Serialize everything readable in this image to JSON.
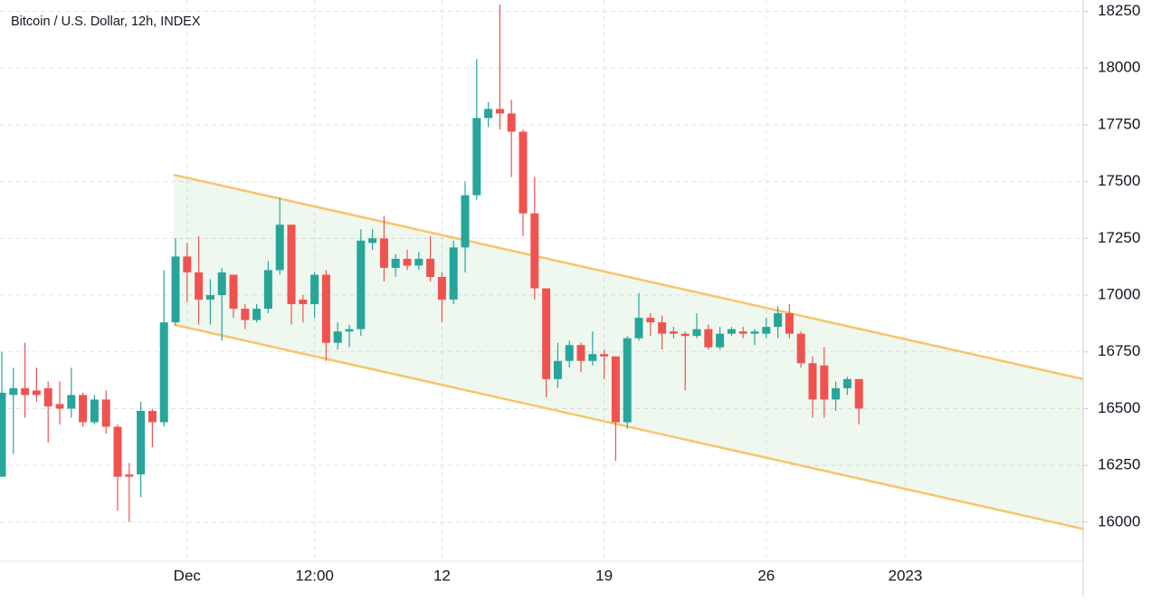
{
  "chart_data": {
    "type": "candlestick",
    "title": "Bitcoin / U.S. Dollar, 12h, INDEX",
    "categories": [
      null,
      null,
      null,
      null,
      null,
      null,
      null,
      null,
      null,
      null,
      null,
      null,
      null,
      null,
      null,
      null,
      "Dec",
      null,
      null,
      null,
      null,
      null,
      null,
      null,
      null,
      null,
      null,
      "12:00",
      null,
      null,
      null,
      null,
      null,
      null,
      null,
      null,
      null,
      null,
      "12",
      null,
      null,
      null,
      null,
      null,
      null,
      null,
      null,
      null,
      null,
      null,
      null,
      null,
      "19",
      null,
      null,
      null,
      null,
      null,
      null,
      null,
      null,
      null,
      null,
      null,
      null,
      null,
      "26",
      null,
      null,
      null,
      null,
      null,
      null,
      null,
      null,
      null,
      null,
      null,
      "2023"
    ],
    "open": [
      16200,
      16560,
      16590,
      16580,
      16590,
      16520,
      16500,
      16560,
      16440,
      16540,
      16420,
      16210,
      16210,
      16490,
      16440,
      16880,
      17170,
      17100,
      16980,
      17000,
      17090,
      16940,
      16890,
      16940,
      17110,
      17310,
      16980,
      16960,
      17090,
      16790,
      16840,
      16850,
      17230,
      17250,
      17120,
      17160,
      17130,
      17160,
      17080,
      16980,
      17210,
      17440,
      17780,
      17820,
      17800,
      17720,
      17360,
      17030,
      16630,
      16710,
      16780,
      16710,
      16740,
      16730,
      16440,
      16810,
      16900,
      16880,
      16840,
      16830,
      16820,
      16850,
      16770,
      16830,
      16840,
      16830,
      16830,
      16860,
      16920,
      16830,
      16700,
      16690,
      16540,
      16590,
      16630,
      null,
      null,
      null,
      null
    ],
    "high": [
      16750,
      16680,
      16790,
      16680,
      16620,
      16620,
      16680,
      16570,
      16560,
      16580,
      16430,
      16260,
      16530,
      16500,
      17110,
      17250,
      17230,
      17260,
      17070,
      17120,
      17090,
      16960,
      16960,
      17150,
      17430,
      17310,
      17000,
      17100,
      17110,
      16880,
      16870,
      17290,
      17290,
      17350,
      17180,
      17200,
      17190,
      17260,
      17100,
      17240,
      17500,
      18040,
      17850,
      18280,
      17860,
      17730,
      17520,
      17030,
      16790,
      16800,
      16790,
      16840,
      16760,
      16730,
      16820,
      17010,
      16920,
      16910,
      16860,
      16840,
      16920,
      16870,
      16860,
      16860,
      16860,
      16850,
      16900,
      16950,
      16960,
      16840,
      16730,
      16770,
      16620,
      16640,
      16630,
      null,
      null,
      null,
      null
    ],
    "low": [
      16200,
      16300,
      16460,
      16530,
      16350,
      16430,
      16460,
      16420,
      16430,
      16390,
      16050,
      16000,
      16110,
      16330,
      16420,
      16870,
      16970,
      16870,
      16870,
      16800,
      16900,
      16850,
      16880,
      16920,
      17090,
      16870,
      16880,
      16900,
      16710,
      16760,
      16770,
      16820,
      17200,
      17060,
      17080,
      17110,
      17110,
      17060,
      16880,
      16960,
      17100,
      17420,
      17740,
      17730,
      17520,
      17260,
      16980,
      16550,
      16590,
      16680,
      16660,
      16690,
      16630,
      16270,
      16410,
      16800,
      16820,
      16760,
      16810,
      16580,
      16810,
      16760,
      16760,
      16820,
      16810,
      16780,
      16810,
      16810,
      16810,
      16680,
      16460,
      16460,
      16490,
      16560,
      16430,
      null,
      null,
      null,
      null
    ],
    "close": [
      16570,
      16590,
      16560,
      16560,
      16510,
      16500,
      16560,
      16440,
      16540,
      16420,
      16200,
      16200,
      16490,
      16440,
      16880,
      17170,
      17100,
      16980,
      17000,
      17100,
      16940,
      16890,
      16940,
      17110,
      17310,
      16960,
      16960,
      17090,
      16790,
      16840,
      16850,
      17240,
      17250,
      17120,
      17160,
      17130,
      17160,
      17080,
      16980,
      17210,
      17440,
      17780,
      17820,
      17800,
      17720,
      17360,
      17030,
      16630,
      16710,
      16780,
      16710,
      16740,
      16730,
      16440,
      16810,
      16900,
      16880,
      16830,
      16830,
      16820,
      16850,
      16770,
      16830,
      16850,
      16830,
      16840,
      16860,
      16920,
      16830,
      16700,
      16540,
      16540,
      16590,
      16630,
      16500,
      null,
      null,
      null,
      null
    ],
    "up_color": "#26a69a",
    "down_color": "#ef5350",
    "channel": {
      "upper": [
        17530,
        16630
      ],
      "lower": [
        16870,
        15970
      ],
      "color": "#f7c46c"
    },
    "ylim": [
      15800,
      18300
    ],
    "yticks": [
      16000,
      16250,
      16500,
      16750,
      17000,
      17250,
      17500,
      17750,
      18000,
      18250
    ],
    "grid": true
  }
}
